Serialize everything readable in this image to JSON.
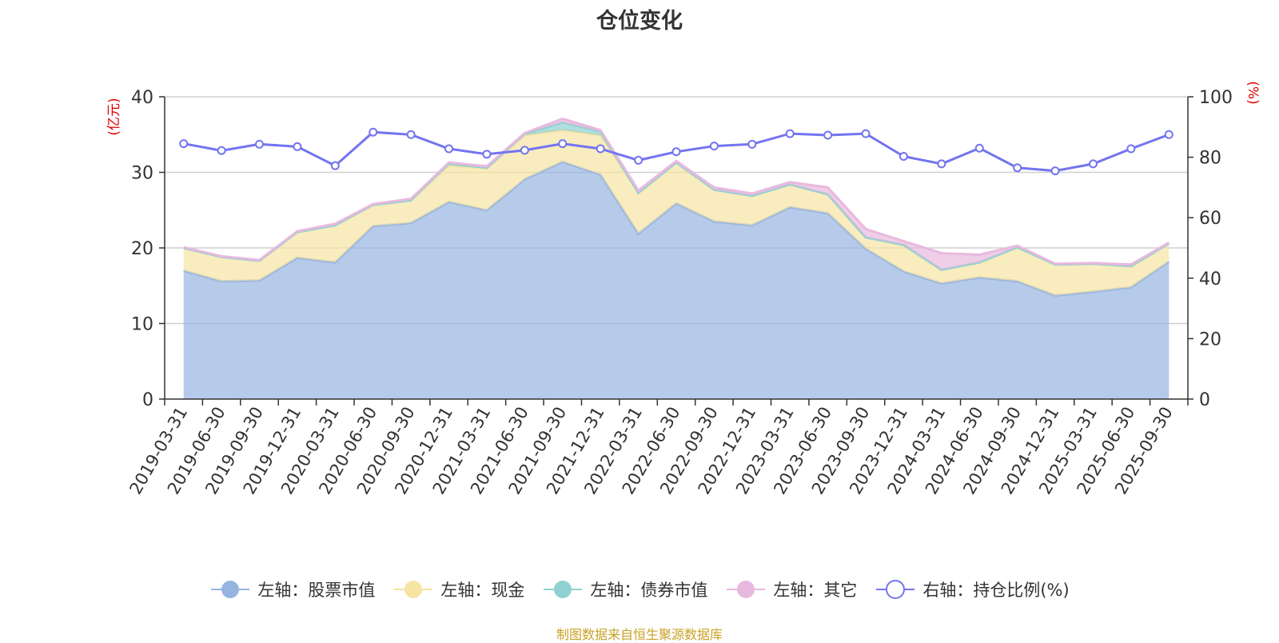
{
  "chart_data": {
    "type": "area",
    "title": "仓位变化",
    "left_axis_label": "(亿元)",
    "right_axis_label": "(%)",
    "left_ylim": [
      0,
      40
    ],
    "left_ticks": [
      "0",
      "10",
      "20",
      "30",
      "40"
    ],
    "right_ylim": [
      0,
      100
    ],
    "right_ticks": [
      "0",
      "20",
      "40",
      "60",
      "80",
      "100"
    ],
    "categories": [
      "2019-03-31",
      "2019-06-30",
      "2019-09-30",
      "2019-12-31",
      "2020-03-31",
      "2020-06-30",
      "2020-09-30",
      "2020-12-31",
      "2021-03-31",
      "2021-06-30",
      "2021-09-30",
      "2021-12-31",
      "2022-03-31",
      "2022-06-30",
      "2022-09-30",
      "2022-12-31",
      "2023-03-31",
      "2023-06-30",
      "2023-09-30",
      "2023-12-31",
      "2024-03-31",
      "2024-06-30",
      "2024-09-30",
      "2024-12-31",
      "2025-03-31",
      "2025-06-30",
      "2025-09-30"
    ],
    "series": [
      {
        "name": "左轴：股票市值",
        "axis": "left",
        "kind": "stack-area",
        "color": "#97b4e0",
        "values": [
          17.0,
          15.6,
          15.7,
          18.7,
          18.1,
          22.9,
          23.3,
          26.1,
          25.0,
          29.1,
          31.4,
          29.7,
          21.9,
          25.9,
          23.5,
          23.0,
          25.4,
          24.6,
          19.9,
          16.9,
          15.3,
          16.1,
          15.6,
          13.7,
          14.2,
          14.8,
          18.2
        ]
      },
      {
        "name": "左轴：现金",
        "axis": "left",
        "kind": "stack-area",
        "color": "#f7e4a3",
        "values": [
          3.0,
          3.2,
          2.6,
          3.4,
          4.9,
          2.8,
          3.0,
          4.8,
          5.5,
          5.8,
          4.2,
          5.2,
          5.4,
          5.4,
          4.2,
          3.9,
          3.0,
          2.5,
          1.5,
          3.5,
          1.8,
          2.0,
          4.5,
          4.1,
          3.7,
          2.8,
          2.4
        ]
      },
      {
        "name": "左轴：债券市值",
        "axis": "left",
        "kind": "stack-area",
        "color": "#8fd1d1",
        "values": [
          0,
          0,
          0,
          0,
          0,
          0,
          0,
          0.3,
          0.1,
          0.2,
          1.0,
          0.5,
          0,
          0,
          0,
          0,
          0,
          0,
          0,
          0,
          0,
          0,
          0,
          0,
          0,
          0,
          0
        ]
      },
      {
        "name": "左轴：其它",
        "axis": "left",
        "kind": "stack-area",
        "color": "#e8b9de",
        "values": [
          0.1,
          0.1,
          0.1,
          0.1,
          0.2,
          0.1,
          0.2,
          0.1,
          0.2,
          0.1,
          0.5,
          0.2,
          0.3,
          0.2,
          0.3,
          0.3,
          0.3,
          0.9,
          1.1,
          0.5,
          2.2,
          1.0,
          0.2,
          0.1,
          0.1,
          0.2,
          0.1
        ]
      },
      {
        "name": "右轴：持仓比例(%)",
        "axis": "right",
        "kind": "line",
        "color": "#7474f0",
        "values": [
          84.5,
          82.2,
          84.3,
          83.5,
          77.2,
          88.3,
          87.5,
          82.8,
          81.0,
          82.3,
          84.5,
          82.8,
          79.0,
          81.8,
          83.7,
          84.3,
          87.8,
          87.3,
          87.8,
          80.3,
          77.8,
          83.0,
          76.5,
          75.5,
          77.8,
          82.8,
          87.5
        ]
      }
    ]
  },
  "source_note": "制图数据来自恒生聚源数据库"
}
